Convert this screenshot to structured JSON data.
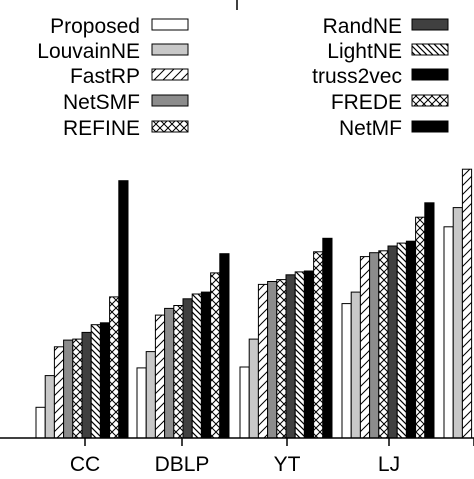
{
  "chart_data": {
    "type": "bar",
    "title": "",
    "xlabel": "",
    "ylabel": "",
    "categories": [
      "CC",
      "DBLP",
      "YT",
      "LJ",
      ""
    ],
    "ylim": [
      0,
      300
    ],
    "grid": false,
    "legend_placement": "top, two columns",
    "series": [
      {
        "name": "Proposed",
        "fill": "white",
        "values": [
          32,
          73,
          74,
          140,
          220
        ]
      },
      {
        "name": "LouvainNE",
        "fill": "lightgray",
        "values": [
          65,
          90,
          103,
          152,
          240
        ]
      },
      {
        "name": "FastRP",
        "fill": "hatch-fwd",
        "values": [
          95,
          128,
          160,
          189,
          280
        ]
      },
      {
        "name": "NetSMF",
        "fill": "gray",
        "values": [
          102,
          135,
          163,
          193,
          null
        ]
      },
      {
        "name": "REFINE",
        "fill": "crosshatch",
        "values": [
          103,
          138,
          165,
          195,
          null
        ]
      },
      {
        "name": "RandNE",
        "fill": "darkgray",
        "values": [
          110,
          145,
          170,
          200,
          null
        ]
      },
      {
        "name": "LightNE",
        "fill": "hatch-back",
        "values": [
          118,
          150,
          173,
          203,
          null
        ]
      },
      {
        "name": "truss2vec",
        "fill": "black",
        "values": [
          120,
          152,
          174,
          205,
          null
        ]
      },
      {
        "name": "FREDE",
        "fill": "crosshatch",
        "values": [
          147,
          172,
          194,
          230,
          null
        ]
      },
      {
        "name": "NetMF",
        "fill": "black",
        "values": [
          268,
          192,
          208,
          245,
          null
        ]
      }
    ],
    "legend": {
      "left": [
        {
          "label": "Proposed",
          "fill": "white"
        },
        {
          "label": "LouvainNE",
          "fill": "lightgray"
        },
        {
          "label": "FastRP",
          "fill": "hatch-fwd"
        },
        {
          "label": "NetSMF",
          "fill": "gray"
        },
        {
          "label": "REFINE",
          "fill": "crosshatch"
        }
      ],
      "right": [
        {
          "label": "RandNE",
          "fill": "darkgray"
        },
        {
          "label": "LightNE",
          "fill": "hatch-back"
        },
        {
          "label": "truss2vec",
          "fill": "black"
        },
        {
          "label": "FREDE",
          "fill": "crosshatch"
        },
        {
          "label": "NetMF",
          "fill": "black"
        }
      ]
    },
    "colors": {
      "white": "#ffffff",
      "lightgray": "#c8c8c8",
      "gray": "#8c8c8c",
      "darkgray": "#404040",
      "black": "#000000",
      "axis": "#000000"
    }
  }
}
